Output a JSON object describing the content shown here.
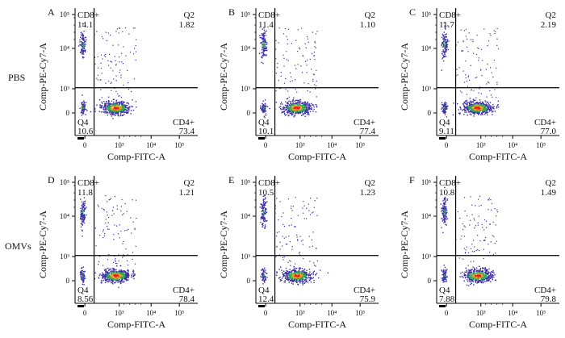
{
  "chart_data": {
    "type": "scatter",
    "description_hidden": false,
    "row_labels": [
      "PBS",
      "OMVs"
    ],
    "xlabel": "Comp-FITC-A",
    "ylabel": "Comp-PE-Cy7-A",
    "x_ticks": [
      "0",
      "10³",
      "10⁴",
      "10⁵"
    ],
    "y_ticks": [
      "10⁵",
      "10⁴",
      "10³",
      "0"
    ],
    "quadrant_labels": {
      "q1": "CD8+",
      "q2": "Q2",
      "q3": "CD4+",
      "q4": "Q4"
    },
    "panels": [
      {
        "letter": "A",
        "cd8": "14.1",
        "q2": "1.82",
        "q4": "10.6",
        "cd4": "73.4"
      },
      {
        "letter": "B",
        "cd8": "11.4",
        "q2": "1.10",
        "q4": "10.1",
        "cd4": "77.4"
      },
      {
        "letter": "C",
        "cd8": "11.7",
        "q2": "2.19",
        "q4": "9.11",
        "cd4": "77.0"
      },
      {
        "letter": "D",
        "cd8": "11.8",
        "q2": "1.21",
        "q4": "8.56",
        "cd4": "78.4"
      },
      {
        "letter": "E",
        "cd8": "10.5",
        "q2": "1.23",
        "q4": "12.4",
        "cd4": "75.9"
      },
      {
        "letter": "F",
        "cd8": "10.8",
        "q2": "1.49",
        "q4": "7.88",
        "cd4": "79.8"
      }
    ],
    "colors": {
      "low": "#3a2ea8",
      "mid": "#2fa84f",
      "high": "#f0a020",
      "peak": "#e8231e",
      "line": "#000000"
    }
  }
}
